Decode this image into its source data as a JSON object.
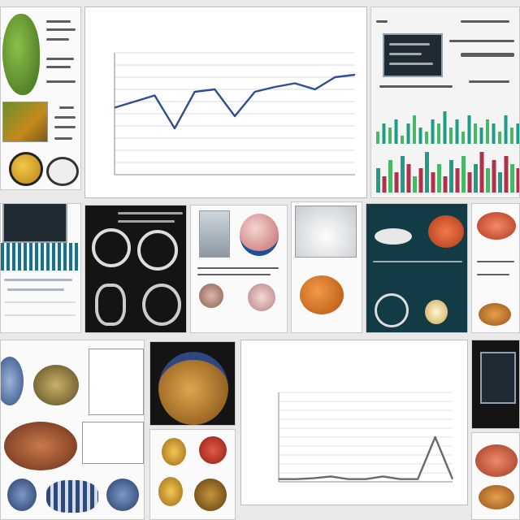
{
  "colors": {
    "line": "#2e4f8f",
    "grid": "#d6dde8",
    "teal": "#1f9c86",
    "green": "#49b766",
    "crimson": "#b0324a",
    "orange": "#d9772a",
    "leaf": "#5f8f2c"
  },
  "chart_data": [
    {
      "type": "line",
      "title": "",
      "subtitle": "",
      "xlabel": "",
      "ylabel": "",
      "ylim": [
        0,
        10
      ],
      "grid": true,
      "legend": "none",
      "x": [
        1,
        2,
        3,
        4,
        5,
        6,
        7,
        8,
        9,
        10,
        11,
        12,
        13
      ],
      "series": [
        {
          "values": [
            5.5,
            6.0,
            6.5,
            3.8,
            6.8,
            7.0,
            4.8,
            6.8,
            7.2,
            7.5,
            7.0,
            8.0,
            8.2
          ]
        }
      ]
    },
    {
      "type": "bar",
      "title": "",
      "legend": "none",
      "grid": false,
      "series": [
        {
          "name": "",
          "values": [
            3,
            5,
            4,
            6,
            2,
            5,
            7,
            4,
            3,
            6,
            5,
            8,
            4,
            6,
            3,
            7,
            5,
            4,
            6,
            5,
            3,
            7,
            4,
            5
          ]
        },
        {
          "name": "",
          "values": [
            6,
            4,
            8,
            5,
            9,
            7,
            4,
            6,
            10,
            5,
            7,
            4,
            8,
            6,
            9,
            5,
            7,
            10,
            6,
            8,
            5,
            9,
            7,
            6
          ]
        }
      ]
    },
    {
      "type": "line",
      "title": "",
      "subtitle": "",
      "xlabel": "",
      "ylabel": "",
      "ylim": [
        0,
        10
      ],
      "grid": true,
      "legend": "none",
      "x": [
        1,
        2,
        3,
        4,
        5,
        6,
        7,
        8,
        9,
        10,
        11
      ],
      "series": [
        {
          "values": [
            0.3,
            0.3,
            0.4,
            0.6,
            0.3,
            0.3,
            0.6,
            0.3,
            0.3,
            5.0,
            0.3
          ]
        }
      ]
    }
  ]
}
